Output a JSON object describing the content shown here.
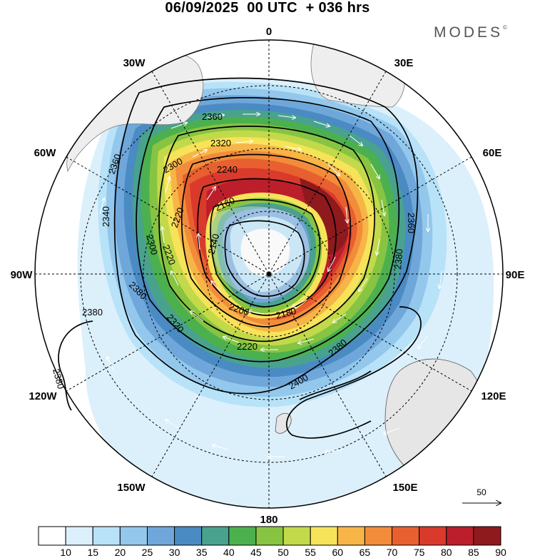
{
  "title": "06/09/2025  00 UTC  + 036 hrs",
  "brand": "MODES",
  "brand_mark": "©",
  "longitude_labels": {
    "top": "0",
    "bottom": "180",
    "left": "90W",
    "right": "90E",
    "upper_left": "30W",
    "upper_right": "30E",
    "left_upper": "60W",
    "right_upper": "60E",
    "left_lower": "120W",
    "right_lower": "120E",
    "lower_left": "150W",
    "lower_right": "150E"
  },
  "contour_labels": [
    "2360",
    "2320",
    "2300",
    "2240",
    "2160",
    "2220",
    "2140",
    "2300",
    "2340",
    "2220",
    "2360",
    "2360",
    "2380",
    "2380",
    "2380",
    "2200",
    "2180",
    "2320",
    "2220",
    "2380",
    "2400",
    "2380"
  ],
  "reference_vector": {
    "label": "50"
  },
  "colorbar": {
    "ticks": [
      "10",
      "15",
      "20",
      "25",
      "30",
      "35",
      "40",
      "45",
      "50",
      "55",
      "60",
      "65",
      "70",
      "75",
      "80",
      "85",
      "90"
    ],
    "colors": [
      "#ffffff",
      "#dcf0fc",
      "#b7e2f8",
      "#93c8ec",
      "#6fa7da",
      "#4b8bc4",
      "#48a28d",
      "#4cb04f",
      "#86c442",
      "#c2d94a",
      "#f7e35a",
      "#f7b548",
      "#f28c3a",
      "#e8602f",
      "#d93a2b",
      "#bc1f2b",
      "#8e1a1e"
    ]
  }
}
